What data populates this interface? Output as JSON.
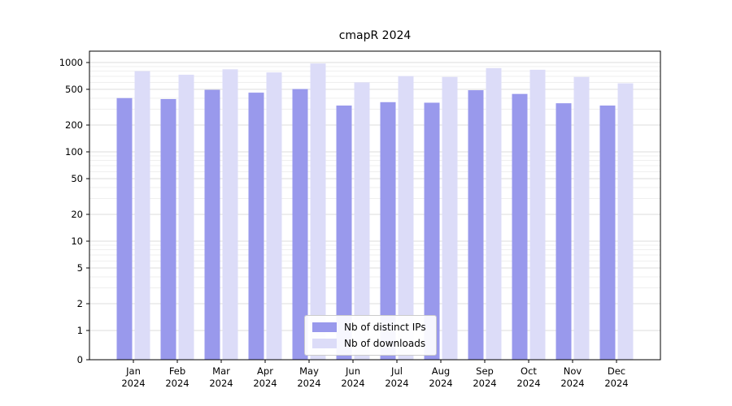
{
  "chart_data": {
    "type": "bar",
    "title": "cmapR 2024",
    "categories": [
      "Jan 2024",
      "Feb 2024",
      "Mar 2024",
      "Apr 2024",
      "May 2024",
      "Jun 2024",
      "Jul 2024",
      "Aug 2024",
      "Sep 2024",
      "Oct 2024",
      "Nov 2024",
      "Dec 2024"
    ],
    "series": [
      {
        "name": "Nb of distinct IPs",
        "color": "#9999ec",
        "values": [
          400,
          390,
          495,
          460,
          505,
          330,
          360,
          355,
          490,
          445,
          350,
          330
        ]
      },
      {
        "name": "Nb of downloads",
        "color": "#dcdcf8",
        "values": [
          800,
          730,
          840,
          775,
          975,
          600,
          705,
          690,
          865,
          830,
          690,
          585
        ]
      }
    ],
    "yscale": "symlog",
    "yticks": [
      0,
      1,
      2,
      5,
      10,
      20,
      50,
      100,
      200,
      500,
      1000
    ],
    "ylim": [
      0,
      1340
    ],
    "xlabel": "",
    "ylabel": "",
    "grid": true,
    "legend_position": "lower center"
  }
}
